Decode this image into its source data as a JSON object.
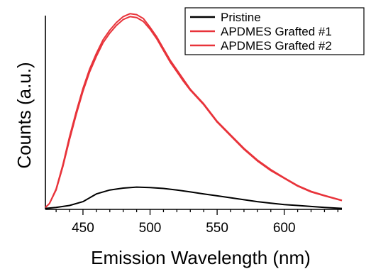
{
  "chart_data": {
    "type": "line",
    "xlabel": "Emission Wavelength (nm)",
    "ylabel": "Counts (a.u.)",
    "xlim": [
      422,
      643
    ],
    "ylim": [
      0,
      100
    ],
    "xticks": [
      450,
      500,
      550,
      600
    ],
    "yticks": [],
    "grid": false,
    "legend": "top-right",
    "series": [
      {
        "name": "Pristine",
        "color": "#000000",
        "x": [
          422,
          430,
          440,
          450,
          460,
          470,
          480,
          490,
          500,
          510,
          520,
          530,
          540,
          550,
          560,
          570,
          580,
          590,
          600,
          610,
          620,
          630,
          643
        ],
        "y": [
          0.5,
          1.0,
          2.0,
          4.0,
          8.0,
          10.0,
          11.0,
          11.5,
          11.3,
          10.8,
          10.0,
          9.0,
          8.0,
          7.0,
          6.0,
          5.0,
          4.0,
          3.2,
          2.5,
          2.0,
          1.5,
          1.0,
          0.5
        ]
      },
      {
        "name": "APDMES Grafted #1",
        "color": "#e8333a",
        "x": [
          422,
          425,
          430,
          435,
          440,
          445,
          450,
          455,
          460,
          465,
          470,
          475,
          480,
          485,
          490,
          495,
          500,
          505,
          510,
          515,
          520,
          525,
          530,
          540,
          550,
          560,
          570,
          580,
          590,
          600,
          610,
          620,
          630,
          643
        ],
        "y": [
          1.0,
          3.0,
          10.0,
          22.0,
          36.0,
          49.0,
          61.0,
          71.0,
          79.0,
          86.0,
          91.0,
          95.0,
          98.0,
          99.5,
          99.0,
          97.0,
          93.0,
          88.0,
          82.0,
          76.0,
          71.0,
          66.0,
          61.5,
          54.0,
          45.0,
          38.0,
          31.0,
          25.0,
          20.0,
          16.0,
          12.0,
          9.0,
          7.0,
          4.5
        ]
      },
      {
        "name": "APDMES Grafted #2",
        "color": "#e8333a",
        "x": [
          422,
          425,
          430,
          435,
          440,
          445,
          450,
          455,
          460,
          465,
          470,
          475,
          480,
          485,
          490,
          495,
          500,
          505,
          510,
          515,
          520,
          525,
          530,
          540,
          550,
          560,
          570,
          580,
          590,
          600,
          610,
          620,
          630,
          643
        ],
        "y": [
          1.0,
          3.0,
          10.5,
          23.0,
          37.5,
          50.5,
          62.5,
          72.5,
          80.5,
          87.5,
          92.5,
          96.5,
          99.5,
          101.0,
          100.5,
          98.5,
          94.0,
          89.0,
          83.0,
          77.0,
          72.0,
          67.0,
          62.0,
          54.5,
          45.5,
          38.5,
          31.5,
          25.5,
          20.5,
          16.3,
          12.3,
          9.3,
          7.2,
          4.7
        ]
      }
    ]
  }
}
